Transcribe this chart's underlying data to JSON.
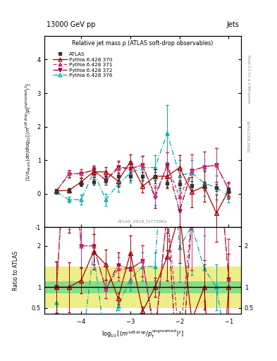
{
  "title_top": "13000 GeV pp",
  "title_right": "Jets",
  "plot_title": "Relative jet mass ρ (ATLAS soft-drop observables)",
  "watermark": "ATLAS_2019_I1772062",
  "right_label": "Rivet 3.1.10; ≥ 2.6M events",
  "arxiv_label": "[arXiv:1306.3436]",
  "ylabel_main": "(1/σ$_{resum}$) dσ/d log$_{10}$[(m$^{soft drop}$/p$_T^{ungroomed}$)$^2$]",
  "ylabel_ratio": "Ratio to ATLAS",
  "ylim_main": [
    -1.0,
    4.7
  ],
  "ylim_ratio": [
    0.35,
    2.45
  ],
  "xdata": [
    -4.5,
    -4.25,
    -4.0,
    -3.75,
    -3.5,
    -3.25,
    -3.0,
    -2.75,
    -2.5,
    -2.25,
    -2.0,
    -1.75,
    -1.5,
    -1.25,
    -1.0
  ],
  "atlas_y": [
    0.08,
    0.1,
    0.3,
    0.35,
    0.42,
    0.52,
    0.52,
    0.52,
    0.52,
    0.3,
    0.28,
    0.25,
    0.22,
    0.18,
    0.1
  ],
  "atlas_yerr": [
    0.05,
    0.06,
    0.08,
    0.08,
    0.1,
    0.1,
    0.12,
    0.12,
    0.12,
    0.1,
    0.12,
    0.12,
    0.12,
    0.1,
    0.08
  ],
  "p370_y": [
    0.08,
    0.1,
    0.35,
    0.65,
    0.65,
    0.38,
    0.95,
    0.22,
    0.52,
    0.52,
    0.78,
    0.05,
    0.22,
    -0.58,
    0.1
  ],
  "p370_yerr": [
    0.05,
    0.06,
    0.1,
    0.15,
    0.15,
    0.18,
    0.22,
    0.18,
    0.22,
    0.35,
    0.38,
    0.45,
    0.45,
    0.55,
    0.25
  ],
  "p371_y": [
    0.08,
    0.6,
    0.6,
    0.7,
    0.4,
    0.75,
    0.75,
    0.85,
    -0.05,
    0.85,
    -0.1,
    0.68,
    0.8,
    0.85,
    0.12
  ],
  "p371_yerr": [
    0.07,
    0.1,
    0.13,
    0.13,
    0.13,
    0.18,
    0.22,
    0.28,
    0.3,
    0.38,
    0.45,
    0.5,
    0.45,
    0.5,
    0.18
  ],
  "p372_y": [
    0.08,
    0.58,
    0.6,
    0.7,
    0.4,
    0.8,
    0.75,
    0.85,
    -0.12,
    0.85,
    -0.52,
    0.68,
    0.8,
    0.85,
    0.12
  ],
  "p372_yerr": [
    0.07,
    0.1,
    0.13,
    0.13,
    0.13,
    0.18,
    0.22,
    0.28,
    0.3,
    0.38,
    0.45,
    0.5,
    0.45,
    0.5,
    0.18
  ],
  "p376_y": [
    0.05,
    -0.18,
    -0.18,
    0.65,
    -0.18,
    0.28,
    0.62,
    0.78,
    0.78,
    1.8,
    0.55,
    0.62,
    0.32,
    0.18,
    -0.08
  ],
  "p376_yerr": [
    0.05,
    0.08,
    0.15,
    0.18,
    0.18,
    0.22,
    0.28,
    0.32,
    0.38,
    0.85,
    0.45,
    0.38,
    0.38,
    0.35,
    0.18
  ],
  "color_atlas": "#333333",
  "color_370": "#aa0000",
  "color_371": "#cc3377",
  "color_372": "#880022",
  "color_376": "#00aaaa",
  "bg_green": "#88dd88",
  "bg_yellow": "#eeee88",
  "ratio_green_half": 0.15,
  "ratio_yellow_half": 0.5
}
